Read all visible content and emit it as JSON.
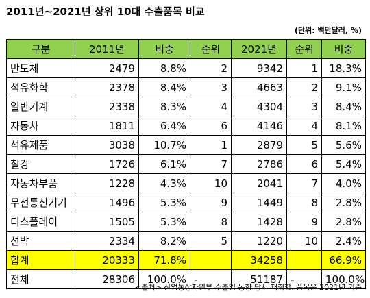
{
  "title": "2011년~2021년 상위 10대 수출품목 비교",
  "unit_note": "(단위: 백만달러, %)",
  "headers": [
    "구분",
    "2011년",
    "비중",
    "순위",
    "2021년",
    "순위",
    "비중"
  ],
  "rows": [
    {
      "item": "반도체",
      "v2011": "2479",
      "share2011": "8.8%",
      "rank2011": "2",
      "v2021": "9342",
      "rank2021": "1",
      "share2021": "18.3%"
    },
    {
      "item": "석유화학",
      "v2011": "2378",
      "share2011": "8.4%",
      "rank2011": "3",
      "v2021": "4663",
      "rank2021": "2",
      "share2021": "9.1%"
    },
    {
      "item": "일반기계",
      "v2011": "2338",
      "share2011": "8.3%",
      "rank2011": "4",
      "v2021": "4304",
      "rank2021": "3",
      "share2021": "8.4%"
    },
    {
      "item": "자동차",
      "v2011": "1811",
      "share2011": "6.4%",
      "rank2011": "6",
      "v2021": "4146",
      "rank2021": "4",
      "share2021": "8.1%"
    },
    {
      "item": "석유제품",
      "v2011": "3038",
      "share2011": "10.7%",
      "rank2011": "1",
      "v2021": "2879",
      "rank2021": "5",
      "share2021": "5.6%"
    },
    {
      "item": "철강",
      "v2011": "1726",
      "share2011": "6.1%",
      "rank2011": "7",
      "v2021": "2786",
      "rank2021": "6",
      "share2021": "5.4%"
    },
    {
      "item": "자동차부품",
      "v2011": "1228",
      "share2011": "4.3%",
      "rank2011": "10",
      "v2021": "2041",
      "rank2021": "7",
      "share2021": "4.0%"
    },
    {
      "item": "무선통신기기",
      "v2011": "1496",
      "share2011": "5.3%",
      "rank2011": "9",
      "v2021": "1449",
      "rank2021": "8",
      "share2021": "2.8%"
    },
    {
      "item": "디스플레이",
      "v2011": "1505",
      "share2011": "5.3%",
      "rank2011": "8",
      "v2021": "1428",
      "rank2021": "9",
      "share2021": "2.8%"
    },
    {
      "item": "선박",
      "v2011": "2334",
      "share2011": "8.2%",
      "rank2011": "5",
      "v2021": "1220",
      "rank2021": "10",
      "share2021": "2.4%"
    }
  ],
  "total": {
    "item": "합계",
    "v2011": "20333",
    "share2011": "71.8%",
    "rank2011": "",
    "v2021": "34258",
    "rank2021": "",
    "share2021": "66.9%"
  },
  "overall": {
    "item": "전체",
    "v2011": "28306",
    "share2011": "100.0%",
    "rank2011": "-",
    "v2021": "51187",
    "rank2021": "-",
    "share2021": "100.0%"
  },
  "highlight_colors": {
    "header": "#92d050",
    "total_row": "#ffff00"
  },
  "source_note": "<출처> 산업통상자원부 수출입 동향 당시 재취합, 품목은 2021년 기준"
}
